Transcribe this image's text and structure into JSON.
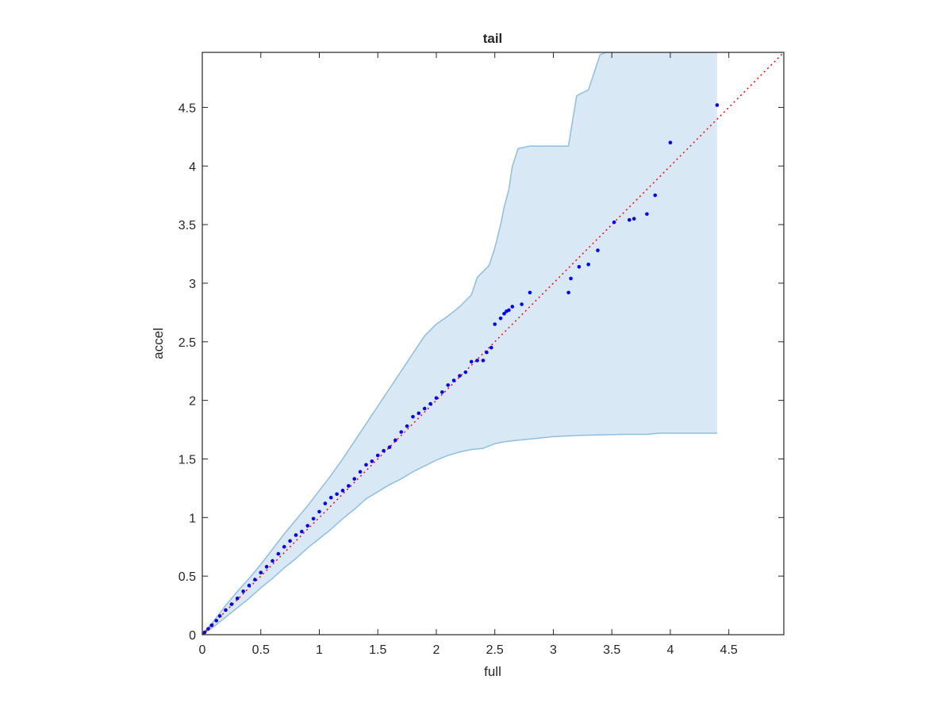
{
  "chart_data": {
    "type": "scatter",
    "title": "tail",
    "xlabel": "full",
    "ylabel": "accel",
    "xlim": [
      0,
      4.97
    ],
    "ylim": [
      0,
      4.97
    ],
    "grid": false,
    "x_ticks": [
      "0",
      "0.5",
      "1",
      "1.5",
      "2",
      "2.5",
      "3",
      "3.5",
      "4",
      "4.5"
    ],
    "y_ticks": [
      "0",
      "0.5",
      "1",
      "1.5",
      "2",
      "2.5",
      "3",
      "3.5",
      "4",
      "4.5"
    ],
    "x_tick_values": [
      0,
      0.5,
      1,
      1.5,
      2,
      2.5,
      3,
      3.5,
      4,
      4.5
    ],
    "y_tick_values": [
      0,
      0.5,
      1,
      1.5,
      2,
      2.5,
      3,
      3.5,
      4,
      4.5
    ],
    "colors": {
      "points": "#0000ff",
      "reference_line": "#ff0000",
      "band_fill": "#d9e8f5",
      "band_edge": "#8dbfe0",
      "axes": "#262626"
    },
    "reference_line": {
      "type": "identity",
      "x": [
        0,
        4.97
      ],
      "y": [
        0,
        4.97
      ],
      "style": "dotted"
    },
    "confidence_band": {
      "upper": [
        [
          0,
          0
        ],
        [
          0.1,
          0.12
        ],
        [
          0.2,
          0.25
        ],
        [
          0.3,
          0.37
        ],
        [
          0.4,
          0.48
        ],
        [
          0.5,
          0.6
        ],
        [
          0.6,
          0.73
        ],
        [
          0.7,
          0.86
        ],
        [
          0.8,
          0.98
        ],
        [
          0.9,
          1.1
        ],
        [
          1.0,
          1.23
        ],
        [
          1.1,
          1.36
        ],
        [
          1.2,
          1.5
        ],
        [
          1.3,
          1.65
        ],
        [
          1.4,
          1.8
        ],
        [
          1.5,
          1.95
        ],
        [
          1.6,
          2.1
        ],
        [
          1.7,
          2.25
        ],
        [
          1.8,
          2.4
        ],
        [
          1.9,
          2.55
        ],
        [
          2.0,
          2.65
        ],
        [
          2.1,
          2.72
        ],
        [
          2.2,
          2.8
        ],
        [
          2.3,
          2.9
        ],
        [
          2.35,
          3.05
        ],
        [
          2.4,
          3.1
        ],
        [
          2.45,
          3.15
        ],
        [
          2.5,
          3.3
        ],
        [
          2.55,
          3.5
        ],
        [
          2.58,
          3.65
        ],
        [
          2.62,
          3.8
        ],
        [
          2.65,
          4.0
        ],
        [
          2.7,
          4.15
        ],
        [
          2.8,
          4.17
        ],
        [
          3.0,
          4.17
        ],
        [
          3.13,
          4.17
        ],
        [
          3.15,
          4.3
        ],
        [
          3.2,
          4.6
        ],
        [
          3.3,
          4.65
        ],
        [
          3.4,
          4.95
        ],
        [
          3.45,
          4.97
        ],
        [
          4.4,
          4.97
        ]
      ],
      "lower": [
        [
          0,
          0
        ],
        [
          0.1,
          0.07
        ],
        [
          0.2,
          0.15
        ],
        [
          0.3,
          0.23
        ],
        [
          0.4,
          0.31
        ],
        [
          0.5,
          0.4
        ],
        [
          0.6,
          0.48
        ],
        [
          0.7,
          0.57
        ],
        [
          0.8,
          0.65
        ],
        [
          0.9,
          0.74
        ],
        [
          1.0,
          0.82
        ],
        [
          1.1,
          0.9
        ],
        [
          1.2,
          0.99
        ],
        [
          1.3,
          1.07
        ],
        [
          1.4,
          1.16
        ],
        [
          1.5,
          1.22
        ],
        [
          1.6,
          1.28
        ],
        [
          1.7,
          1.33
        ],
        [
          1.8,
          1.39
        ],
        [
          1.9,
          1.44
        ],
        [
          2.0,
          1.49
        ],
        [
          2.1,
          1.53
        ],
        [
          2.2,
          1.56
        ],
        [
          2.3,
          1.58
        ],
        [
          2.4,
          1.59
        ],
        [
          2.5,
          1.63
        ],
        [
          2.6,
          1.65
        ],
        [
          2.8,
          1.67
        ],
        [
          3.0,
          1.69
        ],
        [
          3.2,
          1.7
        ],
        [
          3.6,
          1.71
        ],
        [
          3.8,
          1.71
        ],
        [
          3.9,
          1.72
        ],
        [
          4.4,
          1.72
        ]
      ]
    },
    "series": [
      {
        "x": [
          0.02,
          0.05,
          0.08,
          0.12,
          0.15,
          0.2,
          0.25,
          0.3,
          0.35,
          0.4,
          0.45,
          0.5,
          0.55,
          0.6,
          0.65,
          0.7,
          0.75,
          0.8,
          0.85,
          0.9,
          0.95,
          1.0,
          1.05,
          1.1,
          1.15,
          1.2,
          1.25,
          1.3,
          1.35,
          1.4,
          1.45,
          1.5,
          1.55,
          1.6,
          1.65,
          1.7,
          1.75,
          1.8,
          1.85,
          1.9,
          1.95,
          2.0,
          2.05,
          2.1,
          2.15,
          2.2,
          2.25,
          2.3,
          2.35,
          2.4,
          2.43,
          2.47,
          2.5,
          2.55,
          2.58,
          2.6,
          2.62,
          2.65,
          2.73,
          2.8,
          3.13,
          3.15,
          3.22,
          3.3,
          3.38,
          3.52,
          3.65,
          3.69,
          3.8,
          3.87,
          4.0,
          4.4
        ],
        "y": [
          0.02,
          0.05,
          0.08,
          0.12,
          0.16,
          0.21,
          0.26,
          0.31,
          0.37,
          0.42,
          0.47,
          0.53,
          0.58,
          0.63,
          0.69,
          0.75,
          0.8,
          0.85,
          0.88,
          0.93,
          0.99,
          1.05,
          1.12,
          1.17,
          1.2,
          1.23,
          1.27,
          1.33,
          1.39,
          1.45,
          1.48,
          1.53,
          1.57,
          1.6,
          1.66,
          1.73,
          1.78,
          1.86,
          1.89,
          1.93,
          1.97,
          2.02,
          2.07,
          2.13,
          2.17,
          2.21,
          2.24,
          2.33,
          2.34,
          2.34,
          2.41,
          2.45,
          2.65,
          2.7,
          2.74,
          2.76,
          2.77,
          2.8,
          2.82,
          2.92,
          2.92,
          3.04,
          3.14,
          3.16,
          3.28,
          3.52,
          3.54,
          3.55,
          3.59,
          3.75,
          4.2,
          4.52
        ]
      }
    ]
  }
}
